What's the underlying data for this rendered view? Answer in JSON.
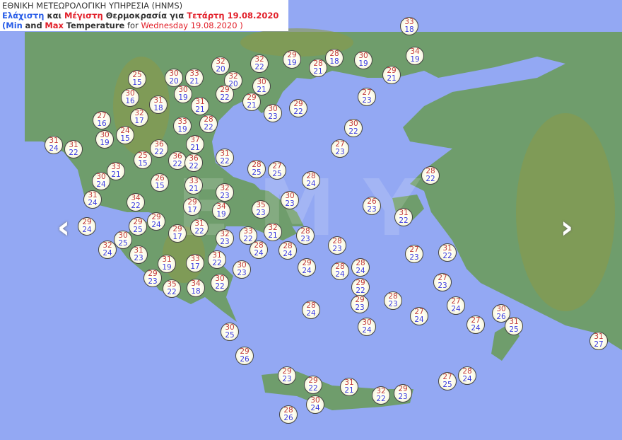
{
  "header": {
    "line1": "ΕΘΝΙΚΗ ΜΕΤΕΩΡΟΛΟΓΙΚΗ ΥΠΗΡΕΣΙΑ (HNMS)",
    "gr_min": "Ελάχιστη",
    "gr_and": "και",
    "gr_max": "Μέγιστη",
    "gr_temp": "Θερμοκρασία για",
    "gr_date": "Τετάρτη 19.08.2020",
    "en_open": "(",
    "en_min": "Min",
    "en_and": "and",
    "en_max": "Max",
    "en_temp": "Temperature",
    "en_for": "for",
    "en_date": "Wednesday 19.08.2020 )"
  },
  "watermark": "EMY",
  "colors": {
    "sea": "#93a8f3",
    "land": "#6f9d6c",
    "max": "#c23a3a",
    "min": "#3c3ce0"
  },
  "nav": {
    "prev_icon": "chevron-left-icon",
    "next_icon": "chevron-right-icon"
  },
  "stations": [
    {
      "max": "33",
      "min": "18"
    },
    {
      "max": "34",
      "min": "19"
    },
    {
      "max": "29",
      "min": "19"
    },
    {
      "max": "28",
      "min": "18"
    },
    {
      "max": "30",
      "min": "19"
    },
    {
      "max": "28",
      "min": "21"
    },
    {
      "max": "29",
      "min": "21"
    },
    {
      "max": "32",
      "min": "20"
    },
    {
      "max": "32",
      "min": "22"
    },
    {
      "max": "25",
      "min": "15"
    },
    {
      "max": "30",
      "min": "20"
    },
    {
      "max": "33",
      "min": "21"
    },
    {
      "max": "32",
      "min": "20"
    },
    {
      "max": "30",
      "min": "21"
    },
    {
      "max": "30",
      "min": "16"
    },
    {
      "max": "30",
      "min": "19"
    },
    {
      "max": "29",
      "min": "22"
    },
    {
      "max": "29",
      "min": "21"
    },
    {
      "max": "29",
      "min": "22"
    },
    {
      "max": "31",
      "min": "18"
    },
    {
      "max": "31",
      "min": "21"
    },
    {
      "max": "27",
      "min": "23"
    },
    {
      "max": "30",
      "min": "23"
    },
    {
      "max": "27",
      "min": "16"
    },
    {
      "max": "32",
      "min": "17"
    },
    {
      "max": "33",
      "min": "19"
    },
    {
      "max": "28",
      "min": "22"
    },
    {
      "max": "30",
      "min": "22"
    },
    {
      "max": "30",
      "min": "19"
    },
    {
      "max": "24",
      "min": "15"
    },
    {
      "max": "31",
      "min": "24"
    },
    {
      "max": "31",
      "min": "22"
    },
    {
      "max": "36",
      "min": "22"
    },
    {
      "max": "37",
      "min": "21"
    },
    {
      "max": "27",
      "min": "23"
    },
    {
      "max": "25",
      "min": "15"
    },
    {
      "max": "36",
      "min": "22"
    },
    {
      "max": "36",
      "min": "22"
    },
    {
      "max": "31",
      "min": "22"
    },
    {
      "max": "33",
      "min": "21"
    },
    {
      "max": "28",
      "min": "25"
    },
    {
      "max": "27",
      "min": "25"
    },
    {
      "max": "28",
      "min": "22"
    },
    {
      "max": "30",
      "min": "24"
    },
    {
      "max": "26",
      "min": "15"
    },
    {
      "max": "33",
      "min": "21"
    },
    {
      "max": "32",
      "min": "23"
    },
    {
      "max": "28",
      "min": "24"
    },
    {
      "max": "30",
      "min": "23"
    },
    {
      "max": "31",
      "min": "24"
    },
    {
      "max": "34",
      "min": "22"
    },
    {
      "max": "29",
      "min": "17"
    },
    {
      "max": "34",
      "min": "19"
    },
    {
      "max": "35",
      "min": "23"
    },
    {
      "max": "26",
      "min": "23"
    },
    {
      "max": "31",
      "min": "22"
    },
    {
      "max": "29",
      "min": "24"
    },
    {
      "max": "29",
      "min": "24"
    },
    {
      "max": "29",
      "min": "25"
    },
    {
      "max": "29",
      "min": "17"
    },
    {
      "max": "31",
      "min": "22"
    },
    {
      "max": "30",
      "min": "25"
    },
    {
      "max": "32",
      "min": "23"
    },
    {
      "max": "33",
      "min": "22"
    },
    {
      "max": "32",
      "min": "21"
    },
    {
      "max": "28",
      "min": "23"
    },
    {
      "max": "28",
      "min": "23"
    },
    {
      "max": "32",
      "min": "24"
    },
    {
      "max": "31",
      "min": "23"
    },
    {
      "max": "28",
      "min": "24"
    },
    {
      "max": "28",
      "min": "24"
    },
    {
      "max": "31",
      "min": "19"
    },
    {
      "max": "33",
      "min": "17"
    },
    {
      "max": "31",
      "min": "22"
    },
    {
      "max": "30",
      "min": "23"
    },
    {
      "max": "27",
      "min": "23"
    },
    {
      "max": "31",
      "min": "22"
    },
    {
      "max": "29",
      "min": "24"
    },
    {
      "max": "28",
      "min": "24"
    },
    {
      "max": "28",
      "min": "24"
    },
    {
      "max": "29",
      "min": "23"
    },
    {
      "max": "35",
      "min": "22"
    },
    {
      "max": "34",
      "min": "18"
    },
    {
      "max": "30",
      "min": "22"
    },
    {
      "max": "29",
      "min": "22"
    },
    {
      "max": "27",
      "min": "23"
    },
    {
      "max": "29",
      "min": "23"
    },
    {
      "max": "28",
      "min": "23"
    },
    {
      "max": "28",
      "min": "24"
    },
    {
      "max": "27",
      "min": "24"
    },
    {
      "max": "27",
      "min": "24"
    },
    {
      "max": "30",
      "min": "26"
    },
    {
      "max": "30",
      "min": "24"
    },
    {
      "max": "27",
      "min": "24"
    },
    {
      "max": "31",
      "min": "25"
    },
    {
      "max": "31",
      "min": "27"
    },
    {
      "max": "30",
      "min": "25"
    },
    {
      "max": "29",
      "min": "26"
    },
    {
      "max": "29",
      "min": "23"
    },
    {
      "max": "29",
      "min": "22"
    },
    {
      "max": "31",
      "min": "21"
    },
    {
      "max": "32",
      "min": "22"
    },
    {
      "max": "29",
      "min": "23"
    },
    {
      "max": "27",
      "min": "25"
    },
    {
      "max": "28",
      "min": "24"
    },
    {
      "max": "30",
      "min": "24"
    },
    {
      "max": "28",
      "min": "26"
    }
  ]
}
